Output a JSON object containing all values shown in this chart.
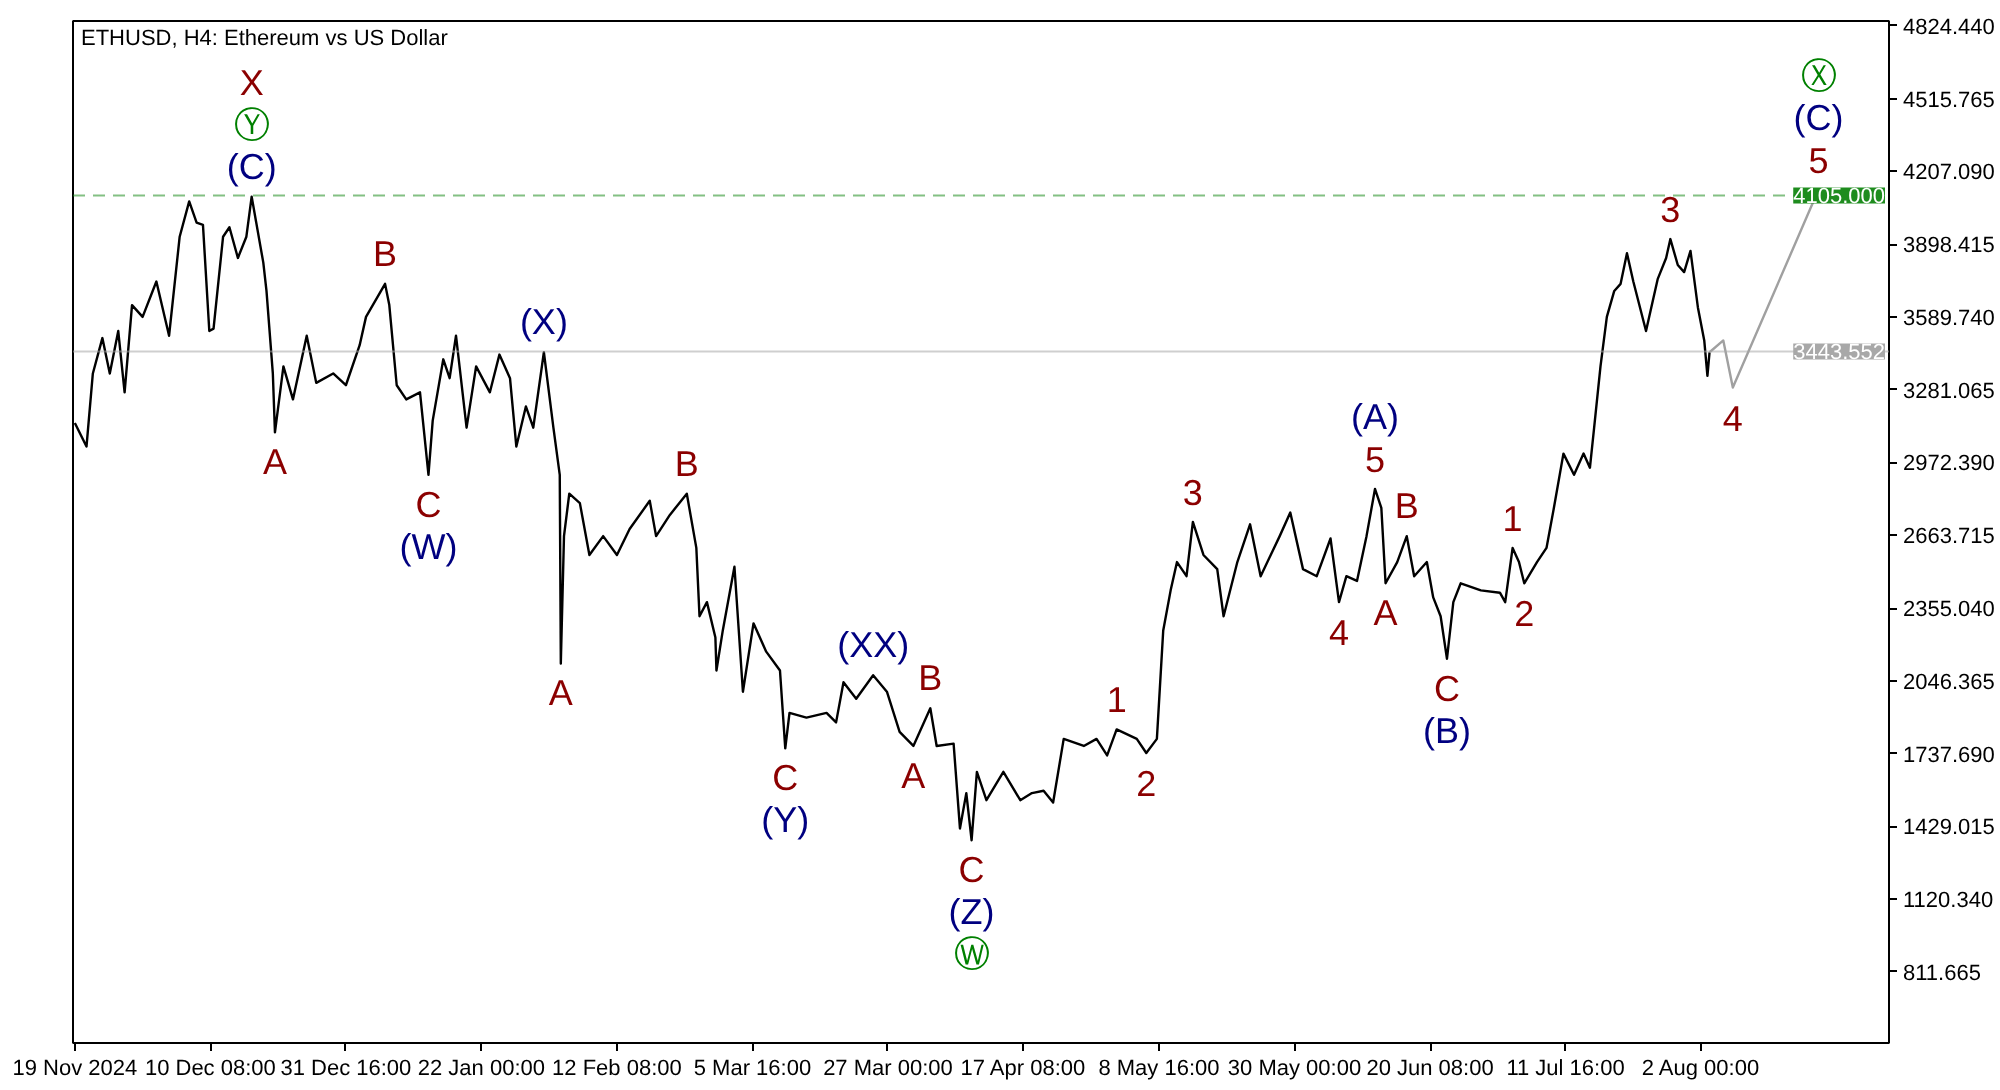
{
  "chart_data": {
    "type": "line",
    "title": "ETHUSD, H4: Ethereum vs US Dollar",
    "xlim": [
      "2024-11-18T17:00",
      "2025-08-31T14:00"
    ],
    "ylim": [
      510,
      4845
    ],
    "xticks": [
      {
        "value": "2024-11-19T00:00",
        "label": "19 Nov 2024"
      },
      {
        "value": "2024-12-10T08:00",
        "label": "10 Dec 08:00"
      },
      {
        "value": "2024-12-31T16:00",
        "label": "31 Dec 16:00"
      },
      {
        "value": "2025-01-22T00:00",
        "label": "22 Jan 00:00"
      },
      {
        "value": "2025-02-12T08:00",
        "label": "12 Feb 08:00"
      },
      {
        "value": "2025-03-05T16:00",
        "label": "5 Mar 16:00"
      },
      {
        "value": "2025-03-27T00:00",
        "label": "27 Mar 00:00"
      },
      {
        "value": "2025-04-17T08:00",
        "label": "17 Apr 08:00"
      },
      {
        "value": "2025-05-08T16:00",
        "label": "8 May 16:00"
      },
      {
        "value": "2025-05-30T00:00",
        "label": "30 May 00:00"
      },
      {
        "value": "2025-06-20T08:00",
        "label": "20 Jun 08:00"
      },
      {
        "value": "2025-07-11T16:00",
        "label": "11 Jul 16:00"
      },
      {
        "value": "2025-08-02T00:00",
        "label": "2 Aug 00:00"
      }
    ],
    "yticks": [
      {
        "value": 4824.44,
        "label": "4824.440"
      },
      4515.765,
      {
        "value": 4207.09,
        "label": "4207.090"
      },
      3898.415,
      {
        "value": 3589.74,
        "label": "3589.740"
      },
      3281.065,
      {
        "value": 2972.39,
        "label": "2972.390"
      },
      2663.715,
      {
        "value": 2355.04,
        "label": "2355.040"
      },
      2046.365,
      {
        "value": 1737.69,
        "label": "1737.690"
      },
      1429.015,
      {
        "value": 1120.34,
        "label": "1120.340"
      },
      811.665
    ],
    "grid": false,
    "series": [
      {
        "color": "#000000",
        "x": [
          "2024-11-19T00:00",
          "2024-11-20T20:00",
          "2024-11-21T20:00",
          "2024-11-23T08:00",
          "2024-11-24T12:00",
          "2024-11-25T20:00",
          "2024-11-26T20:00",
          "2024-11-28T00:00",
          "2024-11-29T16:00",
          "2024-12-01T20:00",
          "2024-12-03T20:00",
          "2024-12-05T12:00",
          "2024-12-07T00:00",
          "2024-12-08T04:00",
          "2024-12-09T04:00",
          "2024-12-10T04:00",
          "2024-12-10T20:00",
          "2024-12-12T08:00",
          "2024-12-13T08:00",
          "2024-12-14T16:00",
          "2024-12-16T00:00",
          "2024-12-16T20:00",
          "2024-12-18T16:00",
          "2024-12-19T04:00",
          "2024-12-20T04:00",
          "2024-12-20T12:00",
          "2024-12-21T20:00",
          "2024-12-23T08:00",
          "2024-12-25T12:00",
          "2024-12-27T00:00",
          "2024-12-29T16:00",
          "2024-12-31T16:00",
          "2025-01-02T20:00",
          "2025-01-03T20:00",
          "2025-01-06T20:00",
          "2025-01-07T12:00",
          "2025-01-08T16:00",
          "2025-01-10T04:00",
          "2025-01-12T08:00",
          "2025-01-13T16:00",
          "2025-01-14T08:00",
          "2025-01-16T00:00",
          "2025-01-17T00:00",
          "2025-01-18T00:00",
          "2025-01-19T16:00",
          "2025-01-21T04:00",
          "2025-01-23T08:00",
          "2025-01-24T20:00",
          "2025-01-26T12:00",
          "2025-01-27T12:00",
          "2025-01-29T00:00",
          "2025-01-30T04:00",
          "2025-01-31T20:00",
          "2025-02-02T08:00",
          "2025-02-03T08:00",
          "2025-02-03T12:00",
          "2025-02-04T00:00",
          "2025-02-04T20:00",
          "2025-02-06T12:00",
          "2025-02-08T00:00",
          "2025-02-10T04:00",
          "2025-02-12T08:00",
          "2025-02-14T08:00",
          "2025-02-17T12:00",
          "2025-02-18T12:00",
          "2025-02-20T16:00",
          "2025-02-23T08:00",
          "2025-02-24T20:00",
          "2025-02-25T08:00",
          "2025-02-26T12:00",
          "2025-02-27T20:00",
          "2025-02-28T00:00",
          "2025-03-01T00:00",
          "2025-03-02T20:00",
          "2025-03-04T04:00",
          "2025-03-05T20:00",
          "2025-03-07T20:00",
          "2025-03-10T00:00",
          "2025-03-10T20:00",
          "2025-03-11T12:00",
          "2025-03-14T04:00",
          "2025-03-17T08:00",
          "2025-03-18T20:00",
          "2025-03-20T00:00",
          "2025-03-22T00:00",
          "2025-03-24T16:00",
          "2025-03-26T20:00",
          "2025-03-28T20:00",
          "2025-03-31T00:00",
          "2025-04-02T16:00",
          "2025-04-03T16:00",
          "2025-04-06T08:00",
          "2025-04-07T08:00",
          "2025-04-08T08:00",
          "2025-04-09T04:00",
          "2025-04-10T00:00",
          "2025-04-11T12:00",
          "2025-04-14T04:00",
          "2025-04-16T20:00",
          "2025-04-18T16:00",
          "2025-04-20T12:00",
          "2025-04-22T00:00",
          "2025-04-23T16:00",
          "2025-04-26T20:00",
          "2025-04-28T20:00",
          "2025-04-30T12:00",
          "2025-05-02T00:00",
          "2025-05-05T04:00",
          "2025-05-06T16:00",
          "2025-05-08T08:00",
          "2025-05-09T08:00",
          "2025-05-10T12:00",
          "2025-05-11T12:00",
          "2025-05-13T00:00",
          "2025-05-14T00:00",
          "2025-05-15T16:00",
          "2025-05-17T20:00",
          "2025-05-18T20:00",
          "2025-05-21T00:00",
          "2025-05-23T00:00",
          "2025-05-24T16:00",
          "2025-05-27T16:00",
          "2025-05-29T08:00",
          "2025-05-31T08:00",
          "2025-06-02T12:00",
          "2025-06-04T16:00",
          "2025-06-06T00:00",
          "2025-06-07T04:00",
          "2025-06-08T20:00",
          "2025-06-10T08:00",
          "2025-06-11T16:00",
          "2025-06-12T16:00",
          "2025-06-13T08:00",
          "2025-06-15T04:00",
          "2025-06-16T16:00",
          "2025-06-17T20:00",
          "2025-06-19T20:00",
          "2025-06-20T20:00",
          "2025-06-22T00:00",
          "2025-06-23T00:00",
          "2025-06-24T00:00",
          "2025-06-25T04:00",
          "2025-06-28T08:00",
          "2025-07-01T08:00",
          "2025-07-02T04:00",
          "2025-07-03T08:00",
          "2025-07-04T08:00",
          "2025-07-05T04:00",
          "2025-07-07T04:00",
          "2025-07-08T16:00",
          "2025-07-09T20:00",
          "2025-07-11T08:00",
          "2025-07-13T00:00",
          "2025-07-14T12:00",
          "2025-07-15T12:00",
          "2025-07-16T04:00",
          "2025-07-17T04:00",
          "2025-07-18T04:00",
          "2025-07-19T08:00",
          "2025-07-20T08:00",
          "2025-07-21T08:00",
          "2025-07-22T08:00",
          "2025-07-24T08:00",
          "2025-07-25T12:00",
          "2025-07-26T04:00",
          "2025-07-27T12:00",
          "2025-07-28T04:00",
          "2025-07-29T08:00",
          "2025-07-30T08:00",
          "2025-07-31T08:00",
          "2025-08-01T12:00",
          "2025-08-02T12:00",
          "2025-08-03T00:00",
          "2025-08-03T08:00"
        ],
        "values": [
          3140,
          3040,
          3350,
          3500,
          3350,
          3530,
          3270,
          3640,
          3590,
          3740,
          3510,
          3930,
          4080,
          3990,
          3980,
          3530,
          3540,
          3930,
          3970,
          3840,
          3930,
          4100,
          3820,
          3700,
          3350,
          3100,
          3380,
          3240,
          3510,
          3310,
          3350,
          3300,
          3470,
          3590,
          3730,
          3640,
          3300,
          3240,
          3270,
          2920,
          3150,
          3410,
          3330,
          3510,
          3120,
          3380,
          3270,
          3430,
          3330,
          3040,
          3210,
          3120,
          3440,
          3120,
          2920,
          2120,
          2660,
          2840,
          2800,
          2580,
          2660,
          2580,
          2690,
          2810,
          2660,
          2750,
          2840,
          2610,
          2320,
          2380,
          2230,
          2090,
          2260,
          2530,
          2000,
          2290,
          2170,
          2090,
          1760,
          1910,
          1890,
          1910,
          1870,
          2040,
          1970,
          2070,
          2000,
          1830,
          1770,
          1930,
          1770,
          1780,
          1420,
          1570,
          1370,
          1660,
          1540,
          1660,
          1540,
          1570,
          1580,
          1530,
          1800,
          1770,
          1800,
          1730,
          1840,
          1800,
          1740,
          1800,
          2260,
          2430,
          2550,
          2490,
          2720,
          2580,
          2520,
          2320,
          2550,
          2710,
          2490,
          2660,
          2760,
          2520,
          2490,
          2650,
          2380,
          2490,
          2470,
          2660,
          2860,
          2780,
          2460,
          2550,
          2660,
          2490,
          2550,
          2400,
          2320,
          2140,
          2380,
          2460,
          2430,
          2420,
          2380,
          2610,
          2550,
          2460,
          2550,
          2610,
          2780,
          3010,
          2920,
          3010,
          2950,
          3120,
          3380,
          3590,
          3700,
          3730,
          3860,
          3740,
          3530,
          3670,
          3750,
          3840,
          3920,
          3810,
          3780,
          3870,
          3630,
          3490,
          3340,
          3440
        ]
      },
      {
        "color": "#a0a0a0",
        "x": [
          "2025-08-03T08:00",
          "2025-08-05T12:00",
          "2025-08-07T00:00",
          "2025-08-20T12:00"
        ],
        "values": [
          3440,
          3490,
          3290,
          4130
        ]
      }
    ],
    "ref_lines": [
      {
        "axis": "y",
        "value": 4105,
        "label": "4105.000",
        "color": "#1e8c1e",
        "line_style": "dashed"
      },
      {
        "axis": "y",
        "value": 3443.552,
        "label": "3443.552",
        "color": "#a8a8a8",
        "line_style": "solid"
      }
    ],
    "annotations": [
      {
        "text": "(C)",
        "x": "2024-12-16T20:00",
        "y": 4100
      },
      {
        "text": "Ⓨ",
        "x": "2024-12-16T20:00",
        "y": 4100
      },
      {
        "text": "X",
        "x": "2024-12-16T20:00",
        "y": 4100
      },
      {
        "text": "A",
        "x": "2024-12-20T12:00",
        "y": 3100
      },
      {
        "text": "B",
        "x": "2025-01-06T20:00",
        "y": 3730
      },
      {
        "text": "C",
        "x": "2025-01-13T16:00",
        "y": 2920
      },
      {
        "text": "(W)",
        "x": "2025-01-13T16:00",
        "y": 2920
      },
      {
        "text": "(X)",
        "x": "2025-01-31T20:00",
        "y": 3440
      },
      {
        "text": "A",
        "x": "2025-02-03T12:00",
        "y": 2120
      },
      {
        "text": "B",
        "x": "2025-02-23T08:00",
        "y": 2840
      },
      {
        "text": "C",
        "x": "2025-03-10T20:00",
        "y": 1760
      },
      {
        "text": "(Y)",
        "x": "2025-03-10T20:00",
        "y": 1760
      },
      {
        "text": "(XX)",
        "x": "2025-03-24T16:00",
        "y": 2070
      },
      {
        "text": "A",
        "x": "2025-03-31T00:00",
        "y": 1770
      },
      {
        "text": "B",
        "x": "2025-04-02T16:00",
        "y": 1930
      },
      {
        "text": "C",
        "x": "2025-04-09T04:00",
        "y": 1370
      },
      {
        "text": "(Z)",
        "x": "2025-04-09T04:00",
        "y": 1370
      },
      {
        "text": "Ⓦ",
        "x": "2025-04-09T04:00",
        "y": 1370
      },
      {
        "text": "1",
        "x": "2025-05-02T00:00",
        "y": 1840
      },
      {
        "text": "2",
        "x": "2025-05-06T16:00",
        "y": 1740
      },
      {
        "text": "3",
        "x": "2025-05-14T00:00",
        "y": 2720
      },
      {
        "text": "4",
        "x": "2025-06-06T00:00",
        "y": 2380
      },
      {
        "text": "5",
        "x": "2025-06-11T16:00",
        "y": 2860
      },
      {
        "text": "(A)",
        "x": "2025-06-11T16:00",
        "y": 2860
      },
      {
        "text": "A",
        "x": "2025-06-13T08:00",
        "y": 2460
      },
      {
        "text": "B",
        "x": "2025-06-16T16:00",
        "y": 2660
      },
      {
        "text": "C",
        "x": "2025-06-23T00:00",
        "y": 2140
      },
      {
        "text": "(B)",
        "x": "2025-06-23T00:00",
        "y": 2140
      },
      {
        "text": "1",
        "x": "2025-07-03T08:00",
        "y": 2610
      },
      {
        "text": "2",
        "x": "2025-07-05T04:00",
        "y": 2460
      },
      {
        "text": "3",
        "x": "2025-07-28T04:00",
        "y": 3920
      },
      {
        "text": "4",
        "x": "2025-08-07T00:00",
        "y": 3290
      },
      {
        "text": "5",
        "x": "2025-08-20T12:00",
        "y": 4130
      },
      {
        "text": "(C)",
        "x": "2025-08-20T12:00",
        "y": 4130
      },
      {
        "text": "Ⓧ",
        "x": "2025-08-20T12:00",
        "y": 4130
      }
    ]
  }
}
